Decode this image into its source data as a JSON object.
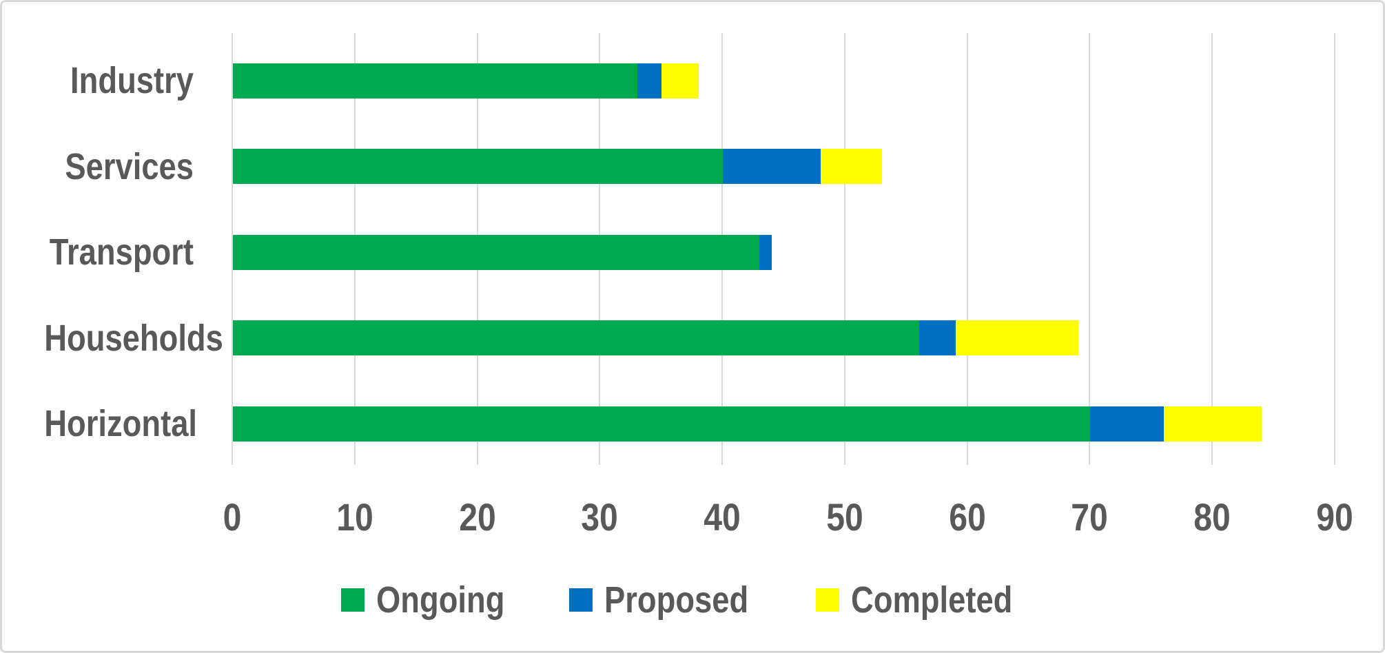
{
  "chart_data": {
    "type": "bar",
    "orientation": "horizontal",
    "stacked": true,
    "title": "",
    "xlabel": "",
    "ylabel": "",
    "categories": [
      "Industry",
      "Services",
      "Transport",
      "Households",
      "Horizontal"
    ],
    "series": [
      {
        "name": "Ongoing",
        "color": "#00A950",
        "values": [
          33,
          40,
          43,
          56,
          70
        ]
      },
      {
        "name": "Proposed",
        "color": "#0070C0",
        "values": [
          2,
          8,
          1,
          3,
          6
        ]
      },
      {
        "name": "Completed",
        "color": "#FFFF00",
        "values": [
          3,
          5,
          0,
          10,
          8
        ]
      }
    ],
    "stack_totals": [
      38,
      53,
      44,
      69,
      84
    ],
    "xlim": [
      0,
      90
    ],
    "x_ticks": [
      0,
      10,
      20,
      30,
      40,
      50,
      60,
      70,
      80,
      90
    ],
    "grid": "vertical-on",
    "legend_position": "bottom"
  },
  "colors": {
    "label_text": "#595959",
    "gridline": "#D9D9D9",
    "background": "#FFFFFF",
    "frame_border": "#D8D8D8"
  }
}
